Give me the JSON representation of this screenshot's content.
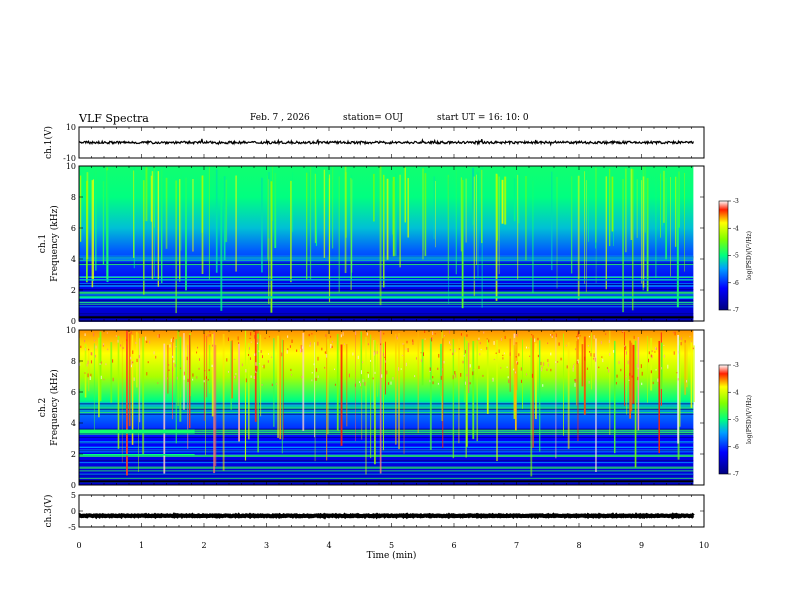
{
  "header": {
    "title": "VLF Spectra",
    "date": "Feb. 7  , 2026",
    "station": "station= OUJ",
    "start": "start  UT  =   16: 10: 0"
  },
  "colors": {
    "spec_low": "#00008b",
    "spec_mid": "#00ff80",
    "spec_high": "#ff0000",
    "trace": "#000000"
  },
  "chart_data": [
    {
      "type": "line",
      "name": "ch1-waveform",
      "ylabel": "ch.1(V)",
      "ylim": [
        -10,
        10
      ],
      "yticks": [
        "10",
        "-10"
      ],
      "baseline": 0,
      "xlim": [
        0,
        9.83
      ]
    },
    {
      "type": "heatmap",
      "name": "ch1-spectrogram",
      "ylabel": "ch.1\nFrequency (kHz)",
      "ylabel_lines": [
        "ch.1",
        "Frequency  (kHz)"
      ],
      "ylim": [
        0,
        10
      ],
      "yticks": [
        "0",
        "2",
        "4",
        "6",
        "8",
        "10"
      ],
      "colorbar": {
        "label": "log(PSD)(V²/Hz)",
        "range": [
          -7,
          -3
        ],
        "ticks": [
          "-3",
          "-4",
          "-5",
          "-6",
          "-7"
        ]
      }
    },
    {
      "type": "heatmap",
      "name": "ch2-spectrogram",
      "ylabel_lines": [
        "ch.2",
        "Frequency  (kHz)"
      ],
      "ylim": [
        0,
        10
      ],
      "yticks": [
        "0",
        "2",
        "4",
        "6",
        "8",
        "10"
      ],
      "colorbar": {
        "label": "log(PSD)(V²/Hz)",
        "range": [
          -7,
          -3
        ],
        "ticks": [
          "-3",
          "-4",
          "-5",
          "-6",
          "-7"
        ]
      }
    },
    {
      "type": "line",
      "name": "ch3-waveform",
      "ylabel": "ch.3(V)",
      "ylim": [
        -5,
        5
      ],
      "yticks": [
        "5",
        "0",
        "-5"
      ],
      "baseline": -1.5,
      "xlim": [
        0,
        9.83
      ]
    }
  ],
  "xaxis": {
    "label": "Time  (min)",
    "ticks": [
      "0",
      "1",
      "2",
      "3",
      "4",
      "5",
      "6",
      "7",
      "8",
      "9",
      "10"
    ],
    "range": [
      0,
      10
    ]
  },
  "colorbar_label": "log(PSD)(V²/Hz)"
}
